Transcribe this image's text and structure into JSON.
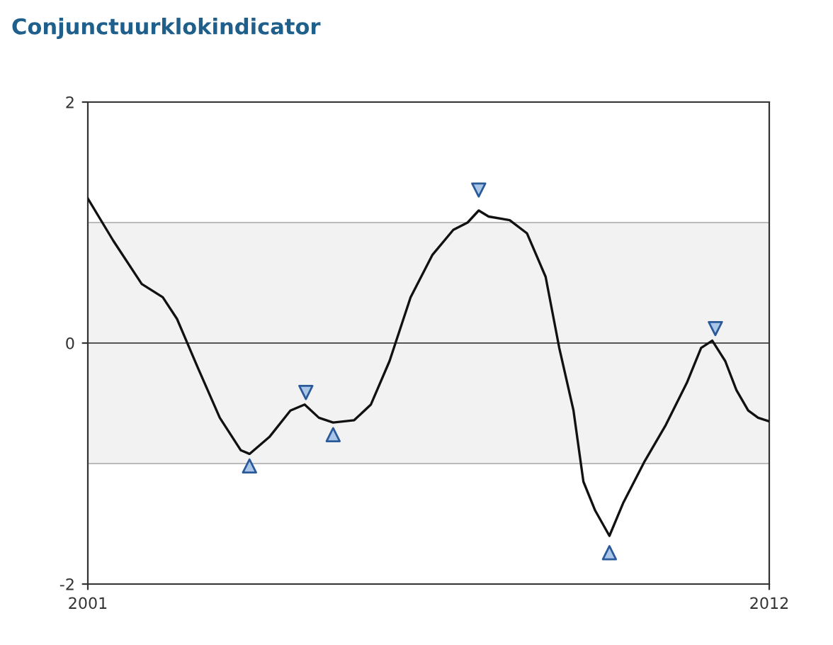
{
  "chart_data": {
    "type": "line",
    "title": "Conjunctuurklokindicator",
    "xlim": [
      2001,
      2012
    ],
    "xticks": [
      2001,
      2012
    ],
    "ylim": [
      -2,
      2
    ],
    "yticks": [
      -2,
      0,
      2
    ],
    "bands": [
      {
        "axis": "y",
        "from": -1,
        "to": 1,
        "color": "#f2f2f2"
      }
    ],
    "ref_lines": [
      {
        "axis": "y",
        "value": 0,
        "color": "#555555"
      },
      {
        "axis": "y",
        "value": 1,
        "color": "#bbbbbb"
      },
      {
        "axis": "y",
        "value": -1,
        "color": "#bbbbbb"
      }
    ],
    "series": [
      {
        "color": "#111111",
        "x": [
          2001,
          2001.41,
          2001.87,
          2002.21,
          2002.44,
          2002.78,
          2003.13,
          2003.47,
          2003.61,
          2003.93,
          2004.27,
          2004.5,
          2004.73,
          2004.96,
          2005.3,
          2005.57,
          2005.87,
          2006.21,
          2006.56,
          2006.9,
          2007.13,
          2007.31,
          2007.47,
          2007.81,
          2008.09,
          2008.39,
          2008.61,
          2008.84,
          2009.0,
          2009.19,
          2009.42,
          2009.64,
          2009.99,
          2010.33,
          2010.67,
          2010.9,
          2011.08,
          2011.29,
          2011.47,
          2011.66,
          2011.82,
          2012.0
        ],
        "values": [
          1.2,
          0.85,
          0.49,
          0.38,
          0.2,
          -0.21,
          -0.62,
          -0.89,
          -0.92,
          -0.78,
          -0.56,
          -0.51,
          -0.62,
          -0.66,
          -0.64,
          -0.51,
          -0.15,
          0.38,
          0.73,
          0.94,
          1.0,
          1.1,
          1.05,
          1.02,
          0.91,
          0.55,
          -0.04,
          -0.56,
          -1.15,
          -1.39,
          -1.6,
          -1.33,
          -0.98,
          -0.68,
          -0.33,
          -0.04,
          0.02,
          -0.15,
          -0.39,
          -0.56,
          -0.62,
          -0.65
        ]
      },
      {
        "type": "scatter",
        "color": "#a9c6e8",
        "marker": "triangle",
        "x": [
          2003.61,
          2004.96,
          2009.42
        ],
        "values": [
          -1.02,
          -0.76,
          -1.74
        ]
      },
      {
        "type": "scatter",
        "color": "#a9c6e8",
        "marker": "triangle_down",
        "x": [
          2004.52,
          2007.31,
          2011.13
        ],
        "values": [
          -0.41,
          1.27,
          0.12
        ]
      }
    ]
  }
}
